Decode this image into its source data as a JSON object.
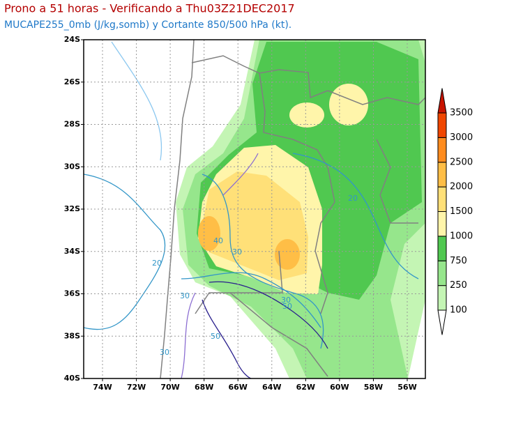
{
  "title": "Prono a 51 horas - Verificando a Thu03Z21DEC2017",
  "subtitle": "MUCAPE255_0mb (J/kg,somb) y Cortante 850/500 hPa (kt).",
  "map": {
    "lat_labels": [
      "24S",
      "26S",
      "28S",
      "30S",
      "32S",
      "34S",
      "36S",
      "38S",
      "40S"
    ],
    "lon_labels": [
      "74W",
      "72W",
      "70W",
      "68W",
      "66W",
      "64W",
      "62W",
      "60W",
      "58W",
      "56W"
    ]
  },
  "colorbar": {
    "levels": [
      100,
      250,
      750,
      1000,
      1500,
      2000,
      2500,
      3000,
      3500
    ],
    "colors": [
      "#ffffff",
      "#c4f5b4",
      "#96e68c",
      "#50c850",
      "#fff5aa",
      "#ffe078",
      "#ffbe46",
      "#ff8c1e",
      "#f04600",
      "#c81400"
    ]
  },
  "contour_labels": [
    "20",
    "30",
    "40",
    "30",
    "30",
    "50",
    "30",
    "50",
    "20"
  ]
}
